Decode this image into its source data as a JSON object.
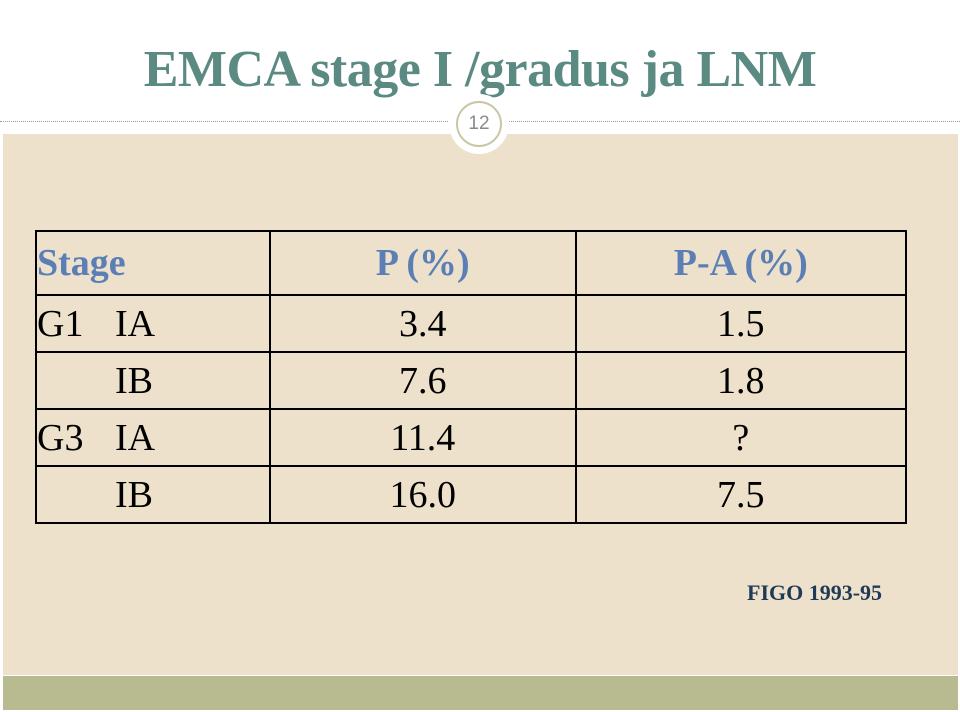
{
  "slide": {
    "title": "EMCA stage I /gradus ja LNM",
    "slide_number": "12",
    "source_note": "FIGO 1993-95"
  },
  "table": {
    "headers": [
      "Stage",
      "P (%)",
      "P-A (%)"
    ],
    "rows": [
      {
        "grade": "G1",
        "substage": "IA",
        "p": "3.4",
        "pa": "1.5"
      },
      {
        "grade": "",
        "substage": "IB",
        "p": "7.6",
        "pa": "1.8"
      },
      {
        "grade": "G3",
        "substage": "IA",
        "p": "11.4",
        "pa": "?"
      },
      {
        "grade": "",
        "substage": "IB",
        "p": "16.0",
        "pa": "7.5"
      }
    ]
  },
  "colors": {
    "title": "#5b8a82",
    "header_text": "#5b7fb5",
    "content_background": "#ede1cb",
    "footer_bar": "#b8bb90",
    "source_note": "#1f3a56"
  }
}
